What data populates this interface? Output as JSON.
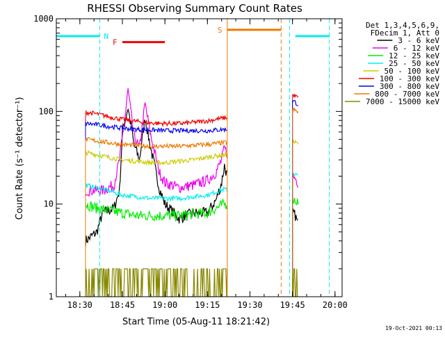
{
  "chart_data": {
    "type": "line",
    "title": "RHESSI Observing Summary Count Rates",
    "xlabel": "Start Time (05-Aug-11 18:21:42)",
    "ylabel": "Count Rate (s⁻¹ detector⁻¹)",
    "yscale": "log",
    "ylim": [
      1,
      1000
    ],
    "xlim": [
      "18:21:42",
      "20:02:30"
    ],
    "x_ticks": [
      "18:30",
      "18:45",
      "19:00",
      "19:15",
      "19:30",
      "19:45",
      "20:00"
    ],
    "y_ticks": [
      "1",
      "10",
      "100",
      "1000"
    ],
    "grid": false,
    "legend_position": "right",
    "legend_header": [
      "Det 1,3,4,5,6,9,",
      "FDecim 1, Att 0"
    ],
    "series": [
      {
        "name": "3 - 6 keV",
        "color": "#000000",
        "points": [
          [
            "18:32",
            4
          ],
          [
            "18:36",
            5
          ],
          [
            "18:38",
            8
          ],
          [
            "18:42",
            9
          ],
          [
            "18:44",
            14
          ],
          [
            "18:45",
            60
          ],
          [
            "18:47",
            110
          ],
          [
            "18:49",
            45
          ],
          [
            "18:51",
            30
          ],
          [
            "18:53",
            85
          ],
          [
            "18:55",
            40
          ],
          [
            "18:58",
            15
          ],
          [
            "19:00",
            10
          ],
          [
            "19:05",
            7
          ],
          [
            "19:10",
            8
          ],
          [
            "19:15",
            8
          ],
          [
            "19:18",
            11
          ],
          [
            "19:20",
            17
          ],
          [
            "19:21",
            26
          ],
          [
            "19:22",
            20
          ]
        ],
        "segment2": [
          [
            "19:45",
            8
          ],
          [
            "19:46",
            7.5
          ],
          [
            "19:47",
            6
          ]
        ]
      },
      {
        "name": "6 - 12 keV",
        "color": "#ee00ee",
        "points": [
          [
            "18:32",
            14
          ],
          [
            "18:38",
            14
          ],
          [
            "18:42",
            16
          ],
          [
            "18:44",
            30
          ],
          [
            "18:46",
            90
          ],
          [
            "18:47",
            170
          ],
          [
            "18:49",
            55
          ],
          [
            "18:51",
            40
          ],
          [
            "18:53",
            120
          ],
          [
            "18:55",
            55
          ],
          [
            "18:58",
            22
          ],
          [
            "19:00",
            17
          ],
          [
            "19:05",
            15
          ],
          [
            "19:10",
            16
          ],
          [
            "19:15",
            18
          ],
          [
            "19:18",
            22
          ],
          [
            "19:20",
            30
          ],
          [
            "19:21",
            40
          ],
          [
            "19:22",
            35
          ]
        ],
        "segment2": [
          [
            "19:45",
            20
          ],
          [
            "19:46",
            19
          ],
          [
            "19:47",
            17
          ]
        ]
      },
      {
        "name": "12 - 25 keV",
        "color": "#00ee00",
        "points": [
          [
            "18:32",
            10
          ],
          [
            "18:36",
            9
          ],
          [
            "18:40",
            8.5
          ],
          [
            "18:45",
            8
          ],
          [
            "18:50",
            7.5
          ],
          [
            "18:55",
            7.5
          ],
          [
            "19:00",
            7.5
          ],
          [
            "19:05",
            7.5
          ],
          [
            "19:10",
            7.8
          ],
          [
            "19:15",
            8
          ],
          [
            "19:18",
            9
          ],
          [
            "19:21",
            10
          ],
          [
            "19:22",
            10
          ]
        ],
        "segment2": [
          [
            "19:45",
            11.5
          ],
          [
            "19:46",
            11
          ],
          [
            "19:47",
            10.5
          ]
        ]
      },
      {
        "name": "25 - 50 keV",
        "color": "#00eeee",
        "points": [
          [
            "18:32",
            16
          ],
          [
            "18:36",
            15
          ],
          [
            "18:40",
            14
          ],
          [
            "18:45",
            12.5
          ],
          [
            "18:50",
            12
          ],
          [
            "18:55",
            11.5
          ],
          [
            "19:00",
            11.5
          ],
          [
            "19:05",
            11.5
          ],
          [
            "19:10",
            12
          ],
          [
            "19:15",
            12.5
          ],
          [
            "19:18",
            13.5
          ],
          [
            "19:21",
            14.5
          ],
          [
            "19:22",
            14
          ]
        ],
        "segment2": [
          [
            "19:45",
            22
          ],
          [
            "19:46",
            21
          ],
          [
            "19:47",
            20
          ]
        ]
      },
      {
        "name": "50 - 100 keV",
        "color": "#cccc00",
        "points": [
          [
            "18:32",
            36
          ],
          [
            "18:36",
            34
          ],
          [
            "18:40",
            32
          ],
          [
            "18:45",
            30
          ],
          [
            "18:50",
            29
          ],
          [
            "18:55",
            28
          ],
          [
            "19:00",
            28
          ],
          [
            "19:05",
            29
          ],
          [
            "19:10",
            30
          ],
          [
            "19:15",
            32
          ],
          [
            "19:18",
            33
          ],
          [
            "19:21",
            34
          ],
          [
            "19:22",
            34
          ]
        ],
        "segment2": [
          [
            "19:45",
            47
          ],
          [
            "19:46",
            46
          ],
          [
            "19:47",
            45
          ]
        ]
      },
      {
        "name": "100 - 300 keV",
        "color": "#ee0000",
        "points": [
          [
            "18:32",
            98
          ],
          [
            "18:36",
            94
          ],
          [
            "18:40",
            88
          ],
          [
            "18:45",
            82
          ],
          [
            "18:50",
            78
          ],
          [
            "18:55",
            75
          ],
          [
            "19:00",
            74
          ],
          [
            "19:05",
            74
          ],
          [
            "19:10",
            76
          ],
          [
            "19:15",
            79
          ],
          [
            "19:18",
            82
          ],
          [
            "19:21",
            85
          ],
          [
            "19:22",
            86
          ]
        ],
        "segment2": [
          [
            "19:45",
            150
          ],
          [
            "19:46",
            146
          ],
          [
            "19:47",
            140
          ]
        ]
      },
      {
        "name": "300 - 800 keV",
        "color": "#0000ee",
        "points": [
          [
            "18:32",
            74
          ],
          [
            "18:36",
            72
          ],
          [
            "18:40",
            69
          ],
          [
            "18:45",
            66
          ],
          [
            "18:50",
            64
          ],
          [
            "18:55",
            63
          ],
          [
            "19:00",
            62
          ],
          [
            "19:05",
            62
          ],
          [
            "19:10",
            62
          ],
          [
            "19:15",
            62
          ],
          [
            "19:18",
            63
          ],
          [
            "19:21",
            64
          ],
          [
            "19:22",
            64
          ]
        ],
        "segment2": [
          [
            "19:45",
            130
          ],
          [
            "19:46",
            126
          ],
          [
            "19:47",
            118
          ]
        ]
      },
      {
        "name": "800 - 7000 keV",
        "color": "#ee7700",
        "points": [
          [
            "18:32",
            50
          ],
          [
            "18:36",
            48
          ],
          [
            "18:40",
            46
          ],
          [
            "18:45",
            44
          ],
          [
            "18:50",
            43
          ],
          [
            "18:55",
            42
          ],
          [
            "19:00",
            42
          ],
          [
            "19:05",
            42
          ],
          [
            "19:10",
            43
          ],
          [
            "19:15",
            44
          ],
          [
            "19:18",
            45
          ],
          [
            "19:21",
            46
          ],
          [
            "19:22",
            46
          ]
        ],
        "segment2": [
          [
            "19:45",
            105
          ],
          [
            "19:46",
            102
          ],
          [
            "19:47",
            98
          ]
        ]
      },
      {
        "name": "7000 - 15000 keV",
        "color": "#888800",
        "points": [
          [
            "18:32",
            2
          ],
          [
            "18:36",
            2
          ],
          [
            "18:40",
            1.5
          ],
          [
            "18:45",
            1.5
          ],
          [
            "18:50",
            1.5
          ],
          [
            "18:55",
            1
          ],
          [
            "19:00",
            1
          ],
          [
            "19:05",
            1
          ],
          [
            "19:10",
            1
          ],
          [
            "19:15",
            1.5
          ],
          [
            "19:18",
            2
          ],
          [
            "19:21",
            2
          ],
          [
            "19:22",
            2
          ]
        ],
        "segment2": [
          [
            "19:45",
            2
          ],
          [
            "19:46",
            2
          ],
          [
            "19:47",
            2
          ]
        ]
      }
    ],
    "annotations": [
      {
        "text": "N",
        "color": "#00eeee",
        "bars": [
          [
            "18:21:42",
            "18:37"
          ],
          [
            "19:46",
            "19:58"
          ]
        ],
        "bar_level": 650,
        "boundaries": [
          "18:37",
          "19:58"
        ]
      },
      {
        "text": "F",
        "color": "#ee0000",
        "bars": [
          [
            "18:45",
            "19:00"
          ]
        ],
        "bar_level": 560,
        "boundaries": []
      },
      {
        "text": "S",
        "color": "#ee7700",
        "bars": [
          [
            "19:22",
            "19:41"
          ]
        ],
        "bar_level": 760,
        "boundaries": [
          "19:22",
          "19:41"
        ]
      }
    ]
  },
  "footer_date": "19-Oct-2021 00:13"
}
